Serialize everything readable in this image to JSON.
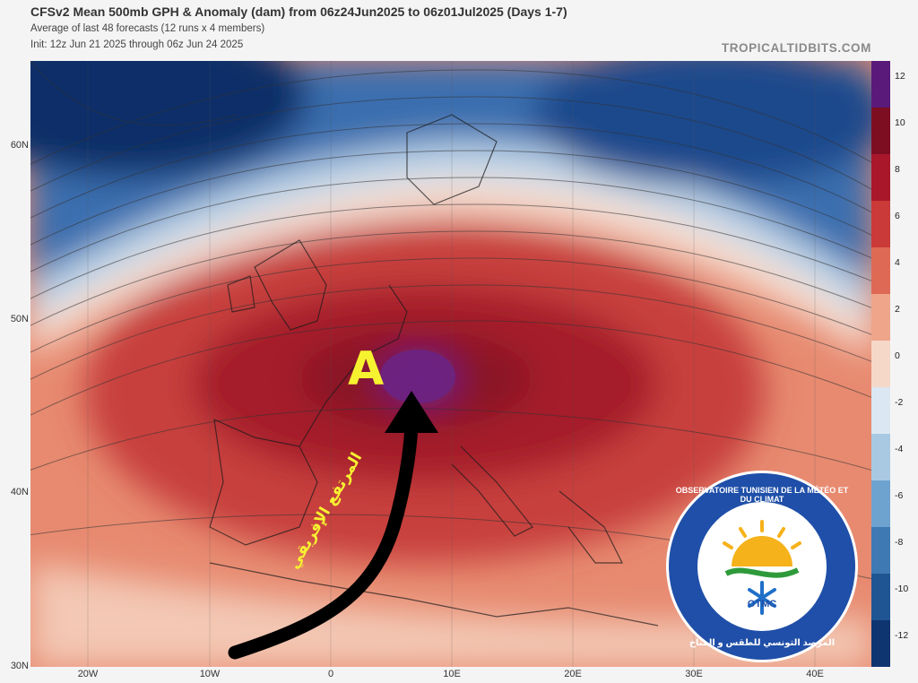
{
  "header": {
    "title": "CFSv2 Mean 500mb GPH & Anomaly (dam) from 06z24Jun2025 to 06z01Jul2025 (Days 1-7)",
    "subtitle1": "Average of last 48 forecasts (12 runs x 4 members)",
    "subtitle2": "Init: 12z Jun 21 2025 through 06z Jun 24 2025",
    "brand": "TROPICALTIDBITS.COM"
  },
  "map": {
    "lat_labels": [
      "60N",
      "50N",
      "40N",
      "30N"
    ],
    "lon_labels": [
      "20W",
      "10W",
      "0",
      "10E",
      "20E",
      "30E",
      "40E"
    ],
    "high_marker": "A",
    "annotation_arabic": "المرتفع الإفريقي",
    "arrow_icon": "curved-arrow-icon"
  },
  "colorbar": {
    "labels": [
      "12",
      "10",
      "8",
      "6",
      "4",
      "2",
      "0",
      "-2",
      "-4",
      "-6",
      "-8",
      "-10",
      "-12"
    ],
    "colors": [
      "#5a1a7a",
      "#7d0e22",
      "#a8182a",
      "#c93a38",
      "#de6a55",
      "#eea58a",
      "#f6d8c8",
      "#dbe7f2",
      "#a9c9e3",
      "#6fa3cf",
      "#3f79b4",
      "#205593",
      "#0f3570"
    ]
  },
  "logo": {
    "text_top": "OBSERVATOIRE TUNISIEN DE LA MÉTÉO ET DU CLIMAT",
    "abbr": "OTMC",
    "text_bottom": "المرصد التونسي للطقس و المناخ"
  }
}
